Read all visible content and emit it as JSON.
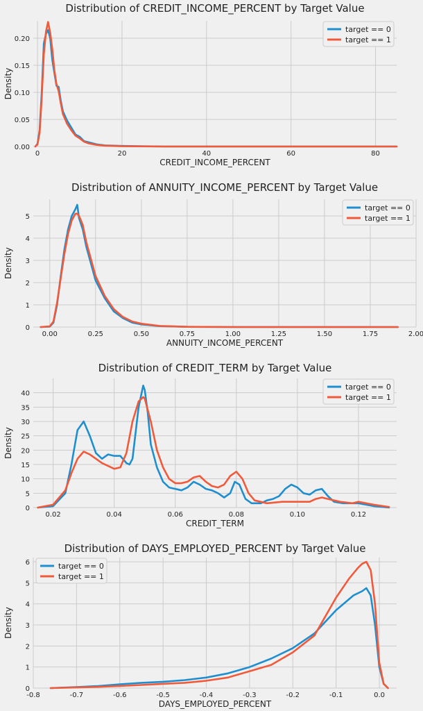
{
  "chart_data": [
    {
      "type": "line",
      "title": "Distribution of CREDIT_INCOME_PERCENT by Target Value",
      "xlabel": "CREDIT_INCOME_PERCENT",
      "ylabel": "Density",
      "xlim": [
        -1,
        85
      ],
      "ylim": [
        0,
        0.232
      ],
      "xticks": [
        0,
        20,
        40,
        60,
        80
      ],
      "xtick_labels": [
        "0",
        "20",
        "40",
        "60",
        "80"
      ],
      "yticks": [
        0,
        0.05,
        0.1,
        0.15,
        0.2
      ],
      "ytick_labels": [
        "0.00",
        "0.05",
        "0.10",
        "0.15",
        "0.20"
      ],
      "grid": true,
      "legend": "top-right",
      "series": [
        {
          "name": "target == 0",
          "color": "#1f8ecf",
          "x": [
            -0.5,
            0,
            0.5,
            1,
            1.5,
            2,
            2.5,
            3,
            3.5,
            4,
            4.5,
            5,
            5.5,
            6,
            7,
            8,
            9,
            10,
            11,
            12,
            14,
            16,
            20,
            30,
            50,
            85
          ],
          "y": [
            0,
            0.005,
            0.03,
            0.1,
            0.19,
            0.208,
            0.215,
            0.2,
            0.16,
            0.135,
            0.112,
            0.11,
            0.085,
            0.065,
            0.048,
            0.035,
            0.022,
            0.018,
            0.01,
            0.008,
            0.004,
            0.002,
            0.001,
            0,
            0,
            0
          ]
        },
        {
          "name": "target == 1",
          "color": "#f05a3a",
          "x": [
            -0.5,
            0,
            0.5,
            1,
            1.5,
            2,
            2.5,
            3,
            3.5,
            4,
            4.5,
            5,
            5.5,
            6,
            7,
            8,
            9,
            10,
            11,
            12,
            14,
            16,
            20,
            30,
            50,
            85
          ],
          "y": [
            0,
            0.004,
            0.025,
            0.09,
            0.17,
            0.212,
            0.23,
            0.21,
            0.18,
            0.14,
            0.115,
            0.102,
            0.08,
            0.06,
            0.042,
            0.03,
            0.02,
            0.015,
            0.009,
            0.006,
            0.003,
            0.0015,
            0.0005,
            0,
            0,
            0
          ]
        }
      ]
    },
    {
      "type": "line",
      "title": "Distribution of ANNUITY_INCOME_PERCENT by Target Value",
      "xlabel": "ANNUITY_INCOME_PERCENT",
      "ylabel": "Density",
      "xlim": [
        -0.09,
        2.0
      ],
      "ylim": [
        0,
        5.75
      ],
      "xticks": [
        0,
        0.25,
        0.5,
        0.75,
        1.0,
        1.25,
        1.5,
        1.75,
        2.0
      ],
      "xtick_labels": [
        "0.00",
        "0.25",
        "0.50",
        "0.75",
        "1.00",
        "1.25",
        "1.50",
        "1.75",
        "2.00"
      ],
      "yticks": [
        0,
        1,
        2,
        3,
        4,
        5
      ],
      "ytick_labels": [
        "0",
        "1",
        "2",
        "3",
        "4",
        "5"
      ],
      "grid": true,
      "legend": "top-right",
      "series": [
        {
          "name": "target == 0",
          "color": "#1f8ecf",
          "x": [
            -0.05,
            0,
            0.02,
            0.04,
            0.06,
            0.08,
            0.1,
            0.12,
            0.14,
            0.15,
            0.16,
            0.18,
            0.2,
            0.22,
            0.25,
            0.3,
            0.35,
            0.4,
            0.45,
            0.5,
            0.6,
            0.75,
            1.0,
            1.5,
            1.9
          ],
          "y": [
            0,
            0.02,
            0.2,
            1.0,
            2.3,
            3.5,
            4.4,
            5.0,
            5.3,
            5.5,
            4.9,
            4.4,
            3.6,
            3.0,
            2.1,
            1.3,
            0.7,
            0.4,
            0.2,
            0.12,
            0.04,
            0.01,
            0,
            0,
            0
          ]
        },
        {
          "name": "target == 1",
          "color": "#f05a3a",
          "x": [
            -0.05,
            0,
            0.02,
            0.04,
            0.06,
            0.08,
            0.1,
            0.12,
            0.14,
            0.15,
            0.16,
            0.18,
            0.2,
            0.22,
            0.25,
            0.3,
            0.35,
            0.4,
            0.45,
            0.5,
            0.6,
            0.75,
            1.0,
            1.5,
            1.9
          ],
          "y": [
            0,
            0.03,
            0.25,
            1.1,
            2.2,
            3.3,
            4.2,
            4.8,
            5.1,
            5.1,
            5.0,
            4.6,
            3.8,
            3.2,
            2.3,
            1.4,
            0.8,
            0.45,
            0.25,
            0.15,
            0.05,
            0.01,
            0,
            0,
            0
          ]
        }
      ]
    },
    {
      "type": "line",
      "title": "Distribution of CREDIT_TERM by Target Value",
      "xlabel": "CREDIT_TERM",
      "ylabel": "Density",
      "xlim": [
        0.0135,
        0.1325
      ],
      "ylim": [
        0,
        45
      ],
      "xticks": [
        0.02,
        0.04,
        0.06,
        0.08,
        0.1,
        0.12
      ],
      "xtick_labels": [
        "0.02",
        "0.04",
        "0.06",
        "0.08",
        "0.10",
        "0.12"
      ],
      "yticks": [
        0,
        5,
        10,
        15,
        20,
        25,
        30,
        35,
        40
      ],
      "ytick_labels": [
        "0",
        "5",
        "10",
        "15",
        "20",
        "25",
        "30",
        "35",
        "40"
      ],
      "grid": true,
      "legend": "top-right",
      "series": [
        {
          "name": "target == 0",
          "color": "#1f8ecf",
          "x": [
            0.015,
            0.02,
            0.024,
            0.026,
            0.028,
            0.03,
            0.032,
            0.034,
            0.036,
            0.038,
            0.04,
            0.042,
            0.044,
            0.045,
            0.046,
            0.048,
            0.0495,
            0.05,
            0.051,
            0.052,
            0.054,
            0.056,
            0.058,
            0.06,
            0.062,
            0.064,
            0.066,
            0.068,
            0.07,
            0.072,
            0.074,
            0.076,
            0.078,
            0.0795,
            0.081,
            0.083,
            0.085,
            0.088,
            0.09,
            0.092,
            0.094,
            0.096,
            0.098,
            0.1,
            0.102,
            0.104,
            0.106,
            0.108,
            0.11,
            0.112,
            0.115,
            0.12,
            0.125,
            0.13
          ],
          "y": [
            0,
            0.5,
            5,
            15,
            27,
            30,
            25,
            19,
            17,
            18.5,
            18,
            18,
            15.5,
            15,
            17,
            35,
            42.5,
            41,
            33,
            22,
            14,
            9,
            7,
            6.5,
            6,
            7,
            9,
            8,
            6.5,
            6,
            5,
            3.5,
            5,
            9,
            8,
            3,
            1.5,
            1.5,
            2.5,
            3,
            4,
            6.5,
            8,
            7,
            5,
            4.5,
            6,
            6.5,
            4,
            2,
            1.5,
            1.5,
            0.5,
            0
          ]
        },
        {
          "name": "target == 1",
          "color": "#f05a3a",
          "x": [
            0.015,
            0.02,
            0.024,
            0.026,
            0.028,
            0.03,
            0.032,
            0.034,
            0.036,
            0.038,
            0.04,
            0.042,
            0.044,
            0.046,
            0.048,
            0.0495,
            0.05,
            0.052,
            0.054,
            0.056,
            0.058,
            0.06,
            0.062,
            0.064,
            0.066,
            0.068,
            0.07,
            0.072,
            0.074,
            0.076,
            0.078,
            0.08,
            0.082,
            0.084,
            0.086,
            0.09,
            0.095,
            0.1,
            0.104,
            0.106,
            0.108,
            0.11,
            0.114,
            0.118,
            0.12,
            0.125,
            0.13
          ],
          "y": [
            0,
            1,
            6,
            12,
            17,
            19.5,
            18.5,
            17,
            15.5,
            14.5,
            13.5,
            14,
            19,
            30,
            37,
            38.5,
            38,
            30,
            20,
            14,
            10,
            8.5,
            8.5,
            9,
            10.5,
            11,
            9,
            7.5,
            7,
            8,
            11,
            12.5,
            10,
            5,
            2.5,
            1.5,
            2,
            2,
            2,
            3,
            3.5,
            3,
            2,
            1.5,
            2,
            1,
            0.2
          ]
        }
      ]
    },
    {
      "type": "line",
      "title": "Distribution of DAYS_EMPLOYED_PERCENT by Target Value",
      "xlabel": "DAYS_EMPLOYED_PERCENT",
      "ylabel": "Density",
      "xlim": [
        -0.8,
        0.04
      ],
      "ylim": [
        0,
        6.2
      ],
      "xticks": [
        -0.8,
        -0.7,
        -0.6,
        -0.5,
        -0.4,
        -0.3,
        -0.2,
        -0.1,
        0.0
      ],
      "xtick_labels": [
        "-0.8",
        "-0.7",
        "-0.6",
        "-0.5",
        "-0.4",
        "-0.3",
        "-0.2",
        "-0.1",
        "0.0"
      ],
      "yticks": [
        0,
        1,
        2,
        3,
        4,
        5,
        6
      ],
      "ytick_labels": [
        "0",
        "1",
        "2",
        "3",
        "4",
        "5",
        "6"
      ],
      "grid": true,
      "legend": "top-left",
      "series": [
        {
          "name": "target == 0",
          "color": "#1f8ecf",
          "x": [
            -0.76,
            -0.7,
            -0.65,
            -0.6,
            -0.55,
            -0.5,
            -0.45,
            -0.4,
            -0.35,
            -0.3,
            -0.25,
            -0.2,
            -0.15,
            -0.1,
            -0.06,
            -0.04,
            -0.03,
            -0.02,
            -0.01,
            0,
            0.01,
            0.02
          ],
          "y": [
            0,
            0.05,
            0.1,
            0.18,
            0.25,
            0.3,
            0.38,
            0.5,
            0.7,
            1.0,
            1.4,
            1.9,
            2.6,
            3.7,
            4.4,
            4.6,
            4.75,
            4.4,
            3.0,
            1.0,
            0.2,
            0
          ]
        },
        {
          "name": "target == 1",
          "color": "#f05a3a",
          "x": [
            -0.76,
            -0.7,
            -0.65,
            -0.6,
            -0.55,
            -0.5,
            -0.45,
            -0.4,
            -0.35,
            -0.3,
            -0.25,
            -0.2,
            -0.15,
            -0.1,
            -0.07,
            -0.05,
            -0.04,
            -0.03,
            -0.02,
            -0.01,
            0,
            0.01,
            0.02
          ],
          "y": [
            0,
            0.03,
            0.06,
            0.1,
            0.15,
            0.2,
            0.25,
            0.35,
            0.5,
            0.8,
            1.1,
            1.7,
            2.5,
            4.3,
            5.2,
            5.7,
            5.9,
            6.0,
            5.6,
            4.0,
            1.2,
            0.2,
            0
          ]
        }
      ]
    }
  ]
}
